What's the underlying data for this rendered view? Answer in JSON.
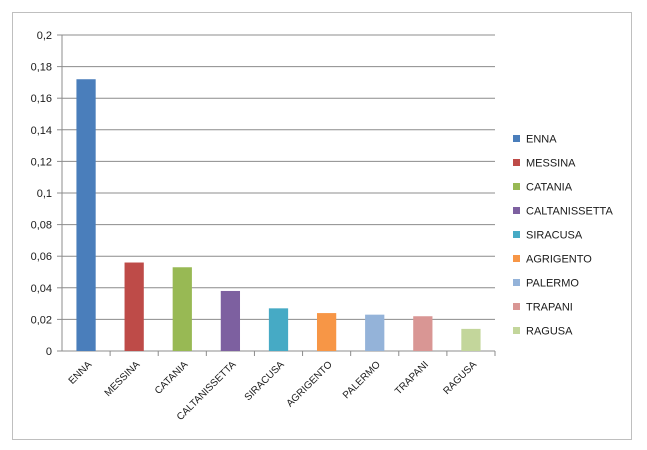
{
  "chart_data": {
    "type": "bar",
    "categories": [
      "ENNA",
      "MESSINA",
      "CATANIA",
      "CALTANISSETTA",
      "SIRACUSA",
      "AGRIGENTO",
      "PALERMO",
      "TRAPANI",
      "RAGUSA"
    ],
    "values": [
      0.172,
      0.056,
      0.053,
      0.038,
      0.027,
      0.024,
      0.023,
      0.022,
      0.014
    ],
    "colors": [
      "#4a7ebb",
      "#be4b48",
      "#98b954",
      "#7d60a0",
      "#46aac5",
      "#f79646",
      "#94b3d9",
      "#d99694",
      "#c3d69b"
    ],
    "ylim": [
      0,
      0.2
    ],
    "yticks": [
      "0",
      "0,02",
      "0,04",
      "0,06",
      "0,08",
      "0,1",
      "0,12",
      "0,14",
      "0,16",
      "0,18",
      "0,2"
    ],
    "grid": true,
    "legend_position": "right",
    "title": "",
    "xlabel": "",
    "ylabel": ""
  }
}
